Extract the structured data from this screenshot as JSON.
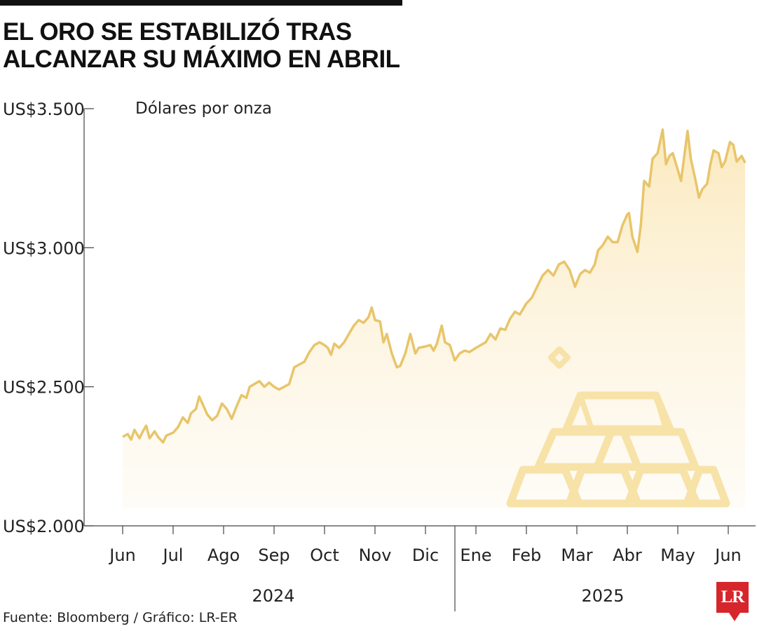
{
  "title": "EL ORO SE ESTABILIZÓ TRAS ALCANZAR SU MÁXIMO EN ABRIL",
  "source": "Fuente: Bloomberg / Gráfico: LR-ER",
  "logo": "LR",
  "colors": {
    "line": "#e8c56a",
    "fill": "#fdf1d8",
    "icon": "#f7e2a8",
    "axis": "#444444"
  },
  "chart_data": {
    "type": "area",
    "unit_label": "Dólares por onza",
    "ylim": [
      2000,
      3500
    ],
    "y_ticks": [
      {
        "value": 2000,
        "label": "US$2.000"
      },
      {
        "value": 2500,
        "label": "US$2.500"
      },
      {
        "value": 3000,
        "label": "US$3.000"
      },
      {
        "value": 3500,
        "label": "US$3.500"
      }
    ],
    "x_ticks": [
      "Jun",
      "Jul",
      "Ago",
      "Sep",
      "Oct",
      "Nov",
      "Dic",
      "Ene",
      "Feb",
      "Mar",
      "Abr",
      "May",
      "Jun"
    ],
    "years": [
      "2024",
      "2025"
    ],
    "x_start": "2024-06-01",
    "series": [
      {
        "values": [
          [
            "2024-06-01",
            2320
          ],
          [
            "2024-06-04",
            2330
          ],
          [
            "2024-06-06",
            2310
          ],
          [
            "2024-06-08",
            2345
          ],
          [
            "2024-06-11",
            2315
          ],
          [
            "2024-06-13",
            2340
          ],
          [
            "2024-06-15",
            2360
          ],
          [
            "2024-06-17",
            2315
          ],
          [
            "2024-06-20",
            2340
          ],
          [
            "2024-06-22",
            2320
          ],
          [
            "2024-06-25",
            2300
          ],
          [
            "2024-06-27",
            2325
          ],
          [
            "2024-07-01",
            2335
          ],
          [
            "2024-07-04",
            2355
          ],
          [
            "2024-07-07",
            2390
          ],
          [
            "2024-07-10",
            2370
          ],
          [
            "2024-07-12",
            2405
          ],
          [
            "2024-07-15",
            2420
          ],
          [
            "2024-07-17",
            2465
          ],
          [
            "2024-07-19",
            2440
          ],
          [
            "2024-07-22",
            2400
          ],
          [
            "2024-07-25",
            2380
          ],
          [
            "2024-07-28",
            2395
          ],
          [
            "2024-07-31",
            2440
          ],
          [
            "2024-08-03",
            2420
          ],
          [
            "2024-08-06",
            2385
          ],
          [
            "2024-08-09",
            2430
          ],
          [
            "2024-08-12",
            2470
          ],
          [
            "2024-08-15",
            2460
          ],
          [
            "2024-08-17",
            2500
          ],
          [
            "2024-08-20",
            2510
          ],
          [
            "2024-08-23",
            2520
          ],
          [
            "2024-08-26",
            2500
          ],
          [
            "2024-08-29",
            2515
          ],
          [
            "2024-09-01",
            2500
          ],
          [
            "2024-09-04",
            2490
          ],
          [
            "2024-09-07",
            2500
          ],
          [
            "2024-09-10",
            2510
          ],
          [
            "2024-09-13",
            2570
          ],
          [
            "2024-09-16",
            2580
          ],
          [
            "2024-09-19",
            2590
          ],
          [
            "2024-09-22",
            2625
          ],
          [
            "2024-09-25",
            2650
          ],
          [
            "2024-09-28",
            2660
          ],
          [
            "2024-10-01",
            2650
          ],
          [
            "2024-10-03",
            2640
          ],
          [
            "2024-10-05",
            2615
          ],
          [
            "2024-10-07",
            2655
          ],
          [
            "2024-10-10",
            2640
          ],
          [
            "2024-10-13",
            2660
          ],
          [
            "2024-10-16",
            2690
          ],
          [
            "2024-10-19",
            2720
          ],
          [
            "2024-10-22",
            2740
          ],
          [
            "2024-10-25",
            2730
          ],
          [
            "2024-10-28",
            2750
          ],
          [
            "2024-10-30",
            2785
          ],
          [
            "2024-11-01",
            2740
          ],
          [
            "2024-11-04",
            2735
          ],
          [
            "2024-11-06",
            2660
          ],
          [
            "2024-11-08",
            2690
          ],
          [
            "2024-11-11",
            2620
          ],
          [
            "2024-11-14",
            2570
          ],
          [
            "2024-11-16",
            2575
          ],
          [
            "2024-11-19",
            2620
          ],
          [
            "2024-11-22",
            2690
          ],
          [
            "2024-11-25",
            2620
          ],
          [
            "2024-11-27",
            2640
          ],
          [
            "2024-12-01",
            2645
          ],
          [
            "2024-12-04",
            2650
          ],
          [
            "2024-12-06",
            2630
          ],
          [
            "2024-12-08",
            2655
          ],
          [
            "2024-12-11",
            2720
          ],
          [
            "2024-12-13",
            2660
          ],
          [
            "2024-12-16",
            2650
          ],
          [
            "2024-12-19",
            2595
          ],
          [
            "2024-12-22",
            2620
          ],
          [
            "2024-12-25",
            2630
          ],
          [
            "2024-12-28",
            2625
          ],
          [
            "2025-01-01",
            2640
          ],
          [
            "2025-01-04",
            2650
          ],
          [
            "2025-01-07",
            2660
          ],
          [
            "2025-01-10",
            2690
          ],
          [
            "2025-01-13",
            2670
          ],
          [
            "2025-01-16",
            2710
          ],
          [
            "2025-01-19",
            2705
          ],
          [
            "2025-01-22",
            2745
          ],
          [
            "2025-01-25",
            2770
          ],
          [
            "2025-01-28",
            2760
          ],
          [
            "2025-02-01",
            2800
          ],
          [
            "2025-02-04",
            2820
          ],
          [
            "2025-02-07",
            2860
          ],
          [
            "2025-02-10",
            2900
          ],
          [
            "2025-02-13",
            2920
          ],
          [
            "2025-02-16",
            2900
          ],
          [
            "2025-02-19",
            2940
          ],
          [
            "2025-02-22",
            2950
          ],
          [
            "2025-02-25",
            2920
          ],
          [
            "2025-02-28",
            2860
          ],
          [
            "2025-03-03",
            2905
          ],
          [
            "2025-03-06",
            2920
          ],
          [
            "2025-03-09",
            2910
          ],
          [
            "2025-03-12",
            2940
          ],
          [
            "2025-03-14",
            2990
          ],
          [
            "2025-03-17",
            3010
          ],
          [
            "2025-03-20",
            3040
          ],
          [
            "2025-03-23",
            3020
          ],
          [
            "2025-03-26",
            3020
          ],
          [
            "2025-03-29",
            3080
          ],
          [
            "2025-04-01",
            3120
          ],
          [
            "2025-04-02",
            3125
          ],
          [
            "2025-04-04",
            3040
          ],
          [
            "2025-04-07",
            2985
          ],
          [
            "2025-04-09",
            3080
          ],
          [
            "2025-04-11",
            3240
          ],
          [
            "2025-04-14",
            3220
          ],
          [
            "2025-04-16",
            3320
          ],
          [
            "2025-04-19",
            3340
          ],
          [
            "2025-04-22",
            3425
          ],
          [
            "2025-04-24",
            3300
          ],
          [
            "2025-04-26",
            3330
          ],
          [
            "2025-04-28",
            3340
          ],
          [
            "2025-05-01",
            3280
          ],
          [
            "2025-05-03",
            3240
          ],
          [
            "2025-05-05",
            3330
          ],
          [
            "2025-05-07",
            3420
          ],
          [
            "2025-05-09",
            3320
          ],
          [
            "2025-05-12",
            3240
          ],
          [
            "2025-05-14",
            3180
          ],
          [
            "2025-05-16",
            3210
          ],
          [
            "2025-05-19",
            3230
          ],
          [
            "2025-05-21",
            3300
          ],
          [
            "2025-05-23",
            3350
          ],
          [
            "2025-05-26",
            3340
          ],
          [
            "2025-05-28",
            3290
          ],
          [
            "2025-05-30",
            3310
          ],
          [
            "2025-06-02",
            3380
          ],
          [
            "2025-06-04",
            3370
          ],
          [
            "2025-06-06",
            3310
          ],
          [
            "2025-06-09",
            3330
          ],
          [
            "2025-06-11",
            3305
          ]
        ]
      }
    ]
  }
}
